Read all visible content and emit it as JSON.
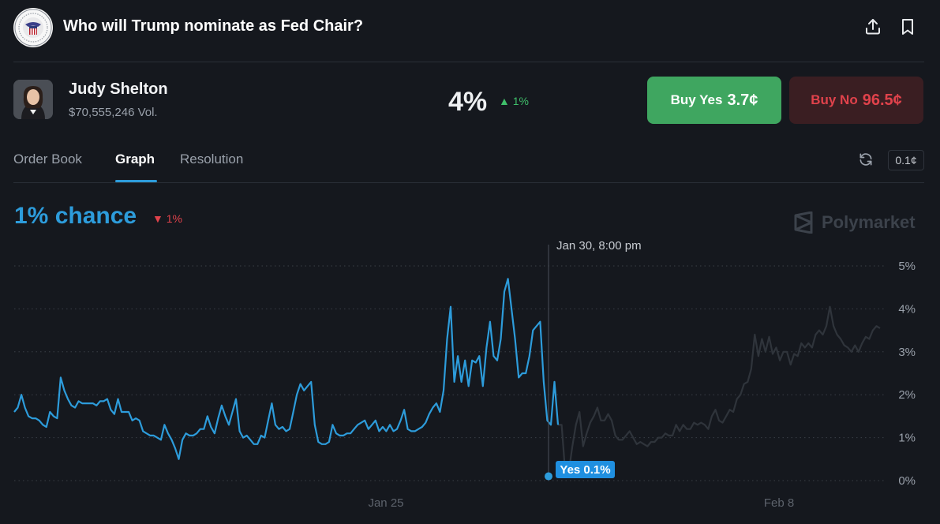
{
  "header": {
    "title": "Who will Trump nominate as Fed Chair?",
    "share_icon": "share-icon",
    "bookmark_icon": "bookmark-icon"
  },
  "outcome": {
    "name": "Judy Shelton",
    "volume": "$70,555,246 Vol.",
    "probability": "4%",
    "change": "1%",
    "change_direction": "up"
  },
  "buttons": {
    "buy_yes_label": "Buy Yes",
    "buy_yes_price": "3.7¢",
    "buy_no_label": "Buy No",
    "buy_no_price": "96.5¢"
  },
  "tabs": [
    {
      "label": "Order Book",
      "active": false
    },
    {
      "label": "Graph",
      "active": true
    },
    {
      "label": "Resolution",
      "active": false
    }
  ],
  "controls": {
    "refresh_icon": "refresh-icon",
    "tick_size": "0.1¢"
  },
  "chance": {
    "label": "1% chance",
    "change": "1%",
    "change_direction": "down"
  },
  "brand": {
    "name": "Polymarket"
  },
  "colors": {
    "background": "#15181e",
    "accent_blue": "#2d9cdb",
    "yes_green": "#3fa660",
    "no_red": "#e0424b",
    "no_bg": "#3a1e22",
    "faded_line": "#2f343b"
  },
  "chart_data": {
    "type": "line",
    "ylim": [
      0,
      5
    ],
    "y_ticks": [
      "5%",
      "4%",
      "3%",
      "2%",
      "1%",
      "0%"
    ],
    "y_tick_values": [
      5,
      4,
      3,
      2,
      1,
      0
    ],
    "x_ticks": [
      "Jan 25",
      "Feb 8"
    ],
    "hover": {
      "label": "Jan 30, 8:00 pm",
      "tooltip": "Yes 0.1%",
      "value": 0.1
    },
    "series": [
      {
        "active": [
          1.6,
          1.7,
          2.0,
          1.7,
          1.5,
          1.45,
          1.45,
          1.4,
          1.3,
          1.25,
          1.6,
          1.5,
          1.45,
          2.4,
          2.1,
          1.9,
          1.75,
          1.7,
          1.85,
          1.8,
          1.8,
          1.8,
          1.8,
          1.75,
          1.85,
          1.85,
          1.9,
          1.65,
          1.55,
          1.9,
          1.6,
          1.6,
          1.6,
          1.4,
          1.45,
          1.4,
          1.15,
          1.1,
          1.05,
          1.05,
          1.0,
          0.95,
          1.3,
          1.1,
          0.95,
          0.75,
          0.5,
          0.95,
          1.1,
          1.05,
          1.05,
          1.1,
          1.2,
          1.2,
          1.5,
          1.25,
          1.1,
          1.45,
          1.75,
          1.5,
          1.3,
          1.6,
          1.9,
          1.15,
          1.0,
          1.05,
          0.95,
          0.85,
          0.85,
          1.05,
          1.0,
          1.4,
          1.8,
          1.3,
          1.2,
          1.25,
          1.15,
          1.2,
          1.6,
          2.0,
          2.25,
          2.1,
          2.2,
          2.3,
          1.3,
          0.9,
          0.85,
          0.85,
          0.9,
          1.3,
          1.1,
          1.05,
          1.05,
          1.1,
          1.1,
          1.2,
          1.3,
          1.35,
          1.4,
          1.2,
          1.3,
          1.4,
          1.15,
          1.25,
          1.15,
          1.3,
          1.15,
          1.2,
          1.4,
          1.65,
          1.2,
          1.15,
          1.15,
          1.2,
          1.25,
          1.35,
          1.55,
          1.7,
          1.8,
          1.6,
          2.1,
          3.3,
          4.05,
          2.3,
          2.9,
          2.3,
          2.8,
          2.2,
          2.8,
          2.75,
          2.9,
          2.2,
          3.1,
          3.7,
          2.9,
          2.8,
          3.3,
          4.4,
          4.7,
          4.0,
          3.3,
          2.4,
          2.5,
          2.5,
          2.9,
          3.5,
          3.6,
          3.7,
          2.3,
          1.4,
          1.3,
          2.3,
          1.3
        ],
        "faded": [
          1.3,
          0.2,
          0.2,
          0.8,
          1.3,
          1.6,
          0.8,
          1.1,
          1.35,
          1.5,
          1.7,
          1.4,
          1.4,
          1.55,
          1.4,
          1.05,
          0.95,
          0.95,
          1.05,
          1.15,
          1.0,
          0.85,
          0.9,
          0.85,
          0.8,
          0.9,
          0.9,
          1.0,
          1.0,
          1.1,
          1.05,
          1.05,
          1.3,
          1.15,
          1.3,
          1.2,
          1.2,
          1.35,
          1.3,
          1.35,
          1.3,
          1.2,
          1.5,
          1.65,
          1.4,
          1.35,
          1.5,
          1.65,
          1.6,
          1.9,
          2.0,
          2.25,
          2.3,
          2.6,
          3.4,
          2.9,
          3.3,
          3.0,
          3.35,
          2.95,
          3.1,
          2.8,
          3.0,
          3.0,
          2.7,
          2.95,
          2.9,
          3.2,
          3.1,
          3.2,
          3.1,
          3.4,
          3.5,
          3.4,
          3.6,
          4.05,
          3.6,
          3.4,
          3.3,
          3.15,
          3.1,
          3.0,
          3.15,
          3.0,
          3.2,
          3.35,
          3.3,
          3.5,
          3.6,
          3.55
        ]
      }
    ]
  }
}
